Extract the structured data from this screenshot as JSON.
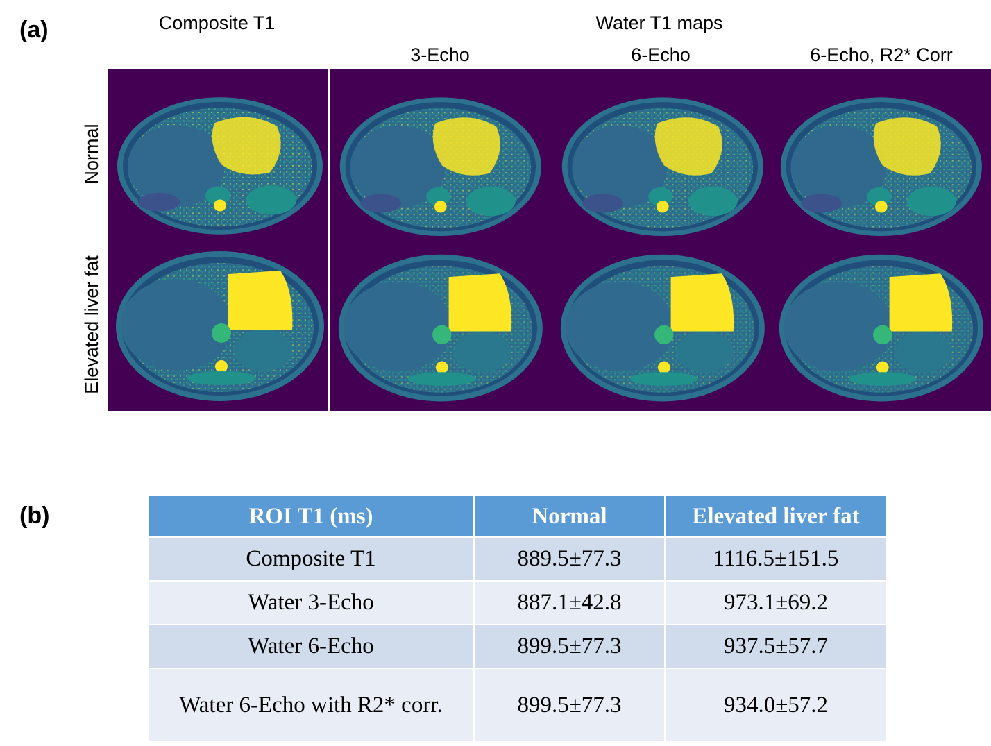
{
  "panel_a": {
    "label": "(a)",
    "headers": {
      "composite": "Composite T1",
      "water_group": "Water T1 maps",
      "echo3": "3-Echo",
      "echo6": "6-Echo",
      "echo6_r2": "6-Echo, R2* Corr"
    },
    "rows": {
      "normal": "Normal",
      "elevated": "Elevated liver fat"
    },
    "colors": {
      "background": "#440154",
      "tissue_dark": "#3b528b",
      "tissue_mid": "#2c728e",
      "tissue_teal": "#21918c",
      "bright": "#fde725",
      "green": "#5ec962"
    }
  },
  "panel_b": {
    "label": "(b)",
    "table": {
      "columns": [
        "ROI T1 (ms)",
        "Normal",
        "Elevated liver fat"
      ],
      "rows": [
        [
          "Composite T1",
          "889.5±77.3",
          "1116.5±151.5"
        ],
        [
          "Water 3-Echo",
          "887.1±42.8",
          "973.1±69.2"
        ],
        [
          "Water 6-Echo",
          "899.5±77.3",
          "937.5±57.7"
        ],
        [
          "Water 6-Echo with R2* corr.",
          "899.5±77.3",
          "934.0±57.2"
        ]
      ]
    },
    "colors": {
      "header": "#5b9bd5",
      "row_odd": "#d0dcec",
      "row_even": "#e9eef6"
    }
  }
}
